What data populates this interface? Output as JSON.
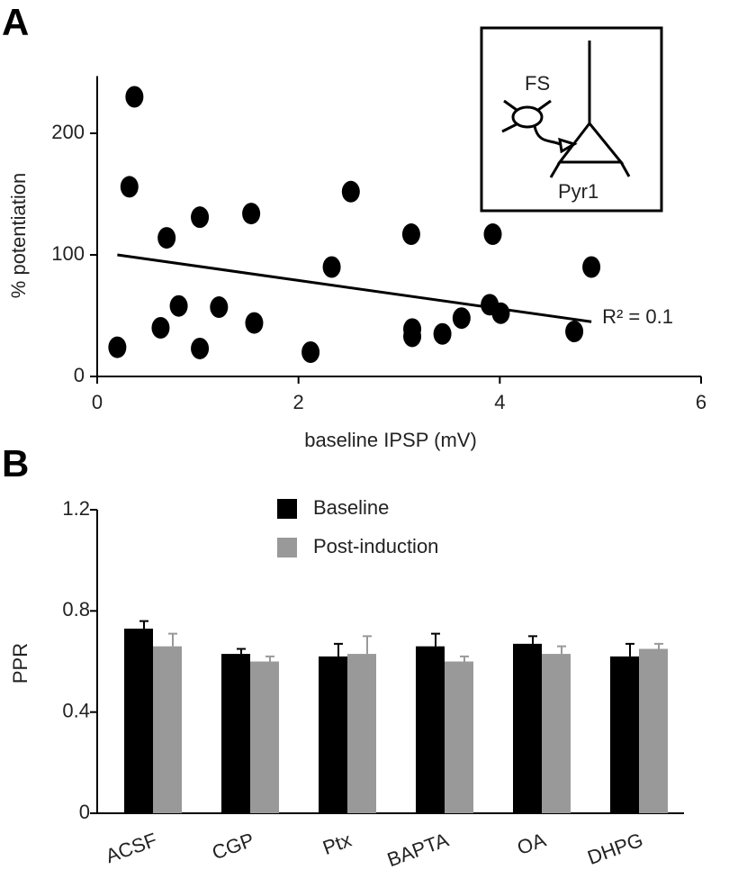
{
  "chart_data": [
    {
      "type": "scatter",
      "panel_label": "A",
      "x_label": "baseline IPSP (mV)",
      "y_label": "% potentiation",
      "xlim": [
        0,
        6
      ],
      "xticks": [
        0,
        2,
        4,
        6
      ],
      "ylim": [
        0,
        250
      ],
      "yticks": [
        0,
        100,
        200
      ],
      "color": "#000000",
      "x": [
        0.2,
        0.37,
        0.32,
        0.69,
        0.63,
        0.81,
        1.02,
        1.02,
        1.21,
        1.53,
        1.56,
        2.12,
        2.33,
        2.52,
        3.12,
        3.13,
        3.13,
        3.43,
        3.62,
        3.9,
        3.93,
        4.01,
        4.74,
        4.91
      ],
      "values": [
        24,
        230,
        156,
        114,
        40,
        58,
        131,
        23,
        57,
        134,
        44,
        20,
        90,
        152,
        117,
        39,
        33,
        35,
        48,
        59,
        117,
        52,
        37,
        90
      ],
      "trend": {
        "x": [
          0.2,
          4.91
        ],
        "values": [
          100,
          45
        ]
      },
      "annotation": "R² = 0.1",
      "inset_labels": [
        "FS",
        "Pyr1"
      ]
    },
    {
      "type": "bar",
      "panel_label": "B",
      "y_label": "PPR",
      "categories": [
        "ACSF",
        "CGP",
        "Ptx",
        "BAPTA",
        "OA",
        "DHPG"
      ],
      "ylim": [
        0,
        1.2
      ],
      "yticks": [
        0,
        {
          "value": 0.4,
          "label": "0.4"
        },
        {
          "value": 0.8,
          "label": "0.8"
        },
        {
          "value": 1.2,
          "label": "1.2"
        }
      ],
      "series": [
        {
          "name": "Baseline",
          "color": "#000000",
          "values": [
            0.73,
            0.63,
            0.62,
            0.66,
            0.67,
            0.62
          ],
          "errors": [
            0.03,
            0.02,
            0.05,
            0.05,
            0.03,
            0.05
          ]
        },
        {
          "name": "Post-induction",
          "color": "#999999",
          "values": [
            0.66,
            0.6,
            0.63,
            0.6,
            0.63,
            0.65
          ],
          "errors": [
            0.05,
            0.02,
            0.07,
            0.02,
            0.03,
            0.02
          ]
        }
      ]
    }
  ]
}
